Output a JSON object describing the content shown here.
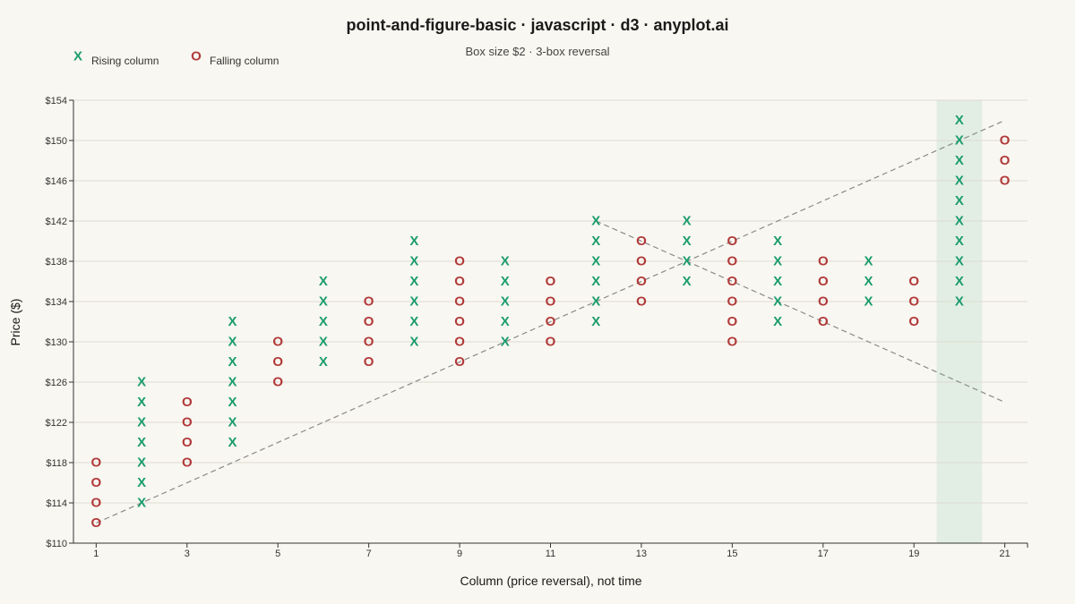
{
  "chart_data": {
    "type": "scatter",
    "title": "point-and-figure-basic · javascript · d3 · anyplot.ai",
    "subtitle": "Box size $2 · 3-box reversal",
    "xlabel": "Column (price reversal), not time",
    "ylabel": "Price ($)",
    "xlim": [
      0.5,
      21.5
    ],
    "ylim": [
      110,
      154
    ],
    "x_ticks": [
      1,
      3,
      5,
      7,
      9,
      11,
      13,
      15,
      17,
      19,
      21
    ],
    "y_ticks": [
      110,
      114,
      118,
      122,
      126,
      130,
      134,
      138,
      142,
      146,
      150,
      154
    ],
    "y_tick_prefix": "$",
    "grid": true,
    "legend_position": "top-left",
    "legend": [
      {
        "symbol": "X",
        "label": "Rising column",
        "color": "#1a9c6e"
      },
      {
        "symbol": "O",
        "label": "Falling column",
        "color": "#b03a3a"
      }
    ],
    "colors": {
      "rising": "#1a9c6e",
      "falling": "#b03a3a",
      "highlight": "#dcebe0",
      "trend": "#8a8a8a"
    },
    "columns": [
      {
        "col": 1,
        "type": "O",
        "low": 112,
        "high": 118
      },
      {
        "col": 2,
        "type": "X",
        "low": 114,
        "high": 126
      },
      {
        "col": 3,
        "type": "O",
        "low": 118,
        "high": 124
      },
      {
        "col": 4,
        "type": "X",
        "low": 120,
        "high": 132
      },
      {
        "col": 5,
        "type": "O",
        "low": 126,
        "high": 130
      },
      {
        "col": 6,
        "type": "X",
        "low": 128,
        "high": 136
      },
      {
        "col": 7,
        "type": "O",
        "low": 128,
        "high": 134
      },
      {
        "col": 8,
        "type": "X",
        "low": 130,
        "high": 140
      },
      {
        "col": 9,
        "type": "O",
        "low": 128,
        "high": 138
      },
      {
        "col": 10,
        "type": "X",
        "low": 130,
        "high": 138
      },
      {
        "col": 11,
        "type": "O",
        "low": 130,
        "high": 136
      },
      {
        "col": 12,
        "type": "X",
        "low": 132,
        "high": 142
      },
      {
        "col": 13,
        "type": "O",
        "low": 134,
        "high": 140
      },
      {
        "col": 14,
        "type": "X",
        "low": 136,
        "high": 142
      },
      {
        "col": 15,
        "type": "O",
        "low": 130,
        "high": 140
      },
      {
        "col": 16,
        "type": "X",
        "low": 132,
        "high": 140
      },
      {
        "col": 17,
        "type": "O",
        "low": 132,
        "high": 138
      },
      {
        "col": 18,
        "type": "X",
        "low": 134,
        "high": 138
      },
      {
        "col": 19,
        "type": "O",
        "low": 132,
        "high": 136
      },
      {
        "col": 20,
        "type": "X",
        "low": 134,
        "high": 152
      },
      {
        "col": 21,
        "type": "O",
        "low": 146,
        "high": 150
      }
    ],
    "highlight_column": 20,
    "trendlines": [
      {
        "from": [
          1,
          112
        ],
        "to": [
          21,
          152
        ]
      },
      {
        "from": [
          12,
          142
        ],
        "to": [
          21,
          124
        ]
      }
    ]
  }
}
